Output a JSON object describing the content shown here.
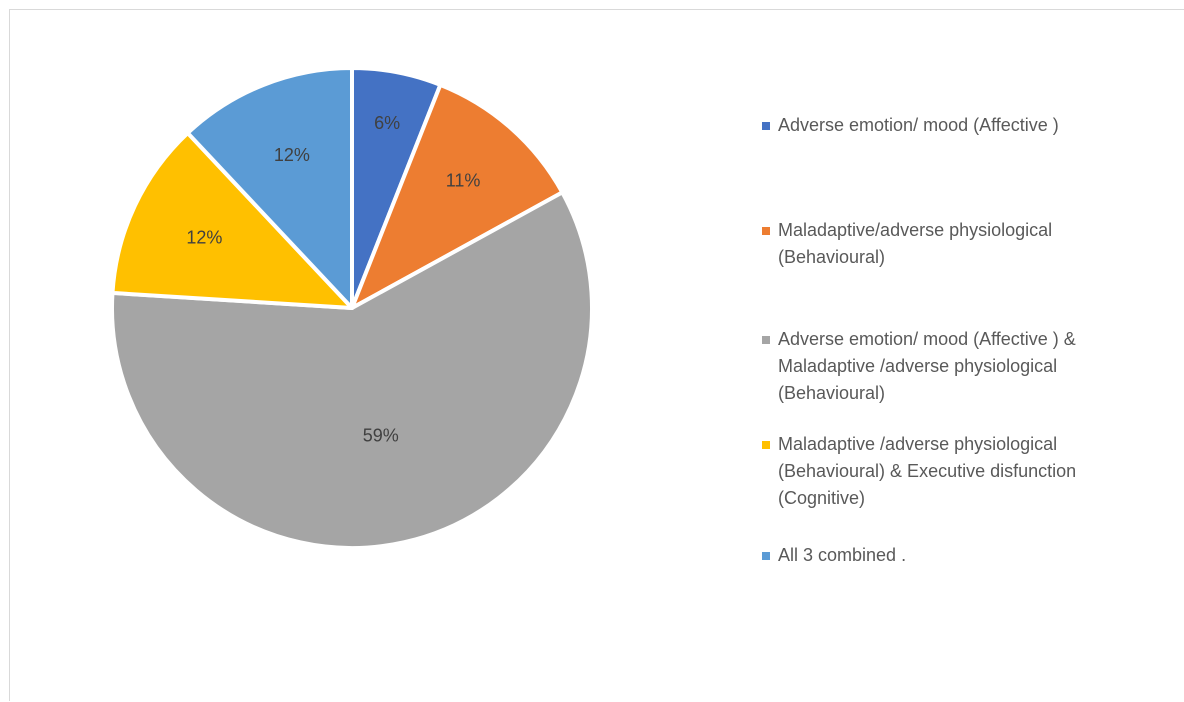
{
  "chart_data": {
    "type": "pie",
    "categories": [
      "Adverse emotion/ mood (Affective )",
      "Maladaptive/adverse physiological (Behavioural)",
      "Adverse emotion/ mood (Affective ) & Maladaptive /adverse physiological (Behavioural)",
      "Maladaptive /adverse physiological (Behavioural) & Executive disfunction (Cognitive)",
      "All 3 combined ."
    ],
    "values": [
      6,
      11,
      59,
      12,
      12
    ],
    "data_labels": [
      "6%",
      "11%",
      "59%",
      "12%",
      "12%"
    ],
    "colors": [
      "#4472c4",
      "#ed7d31",
      "#a5a5a5",
      "#ffc000",
      "#5b9bd5"
    ],
    "legend_lines": [
      [
        "Adverse emotion/ mood (Affective )"
      ],
      [
        "Maladaptive/adverse physiological",
        "(Behavioural)"
      ],
      [
        "Adverse emotion/ mood (Affective ) &",
        "Maladaptive /adverse physiological",
        "(Behavioural)"
      ],
      [
        "Maladaptive /adverse physiological",
        "(Behavioural) & Executive disfunction",
        "(Cognitive)"
      ],
      [
        "All 3 combined ."
      ]
    ],
    "legend_position": "right",
    "title": ""
  }
}
